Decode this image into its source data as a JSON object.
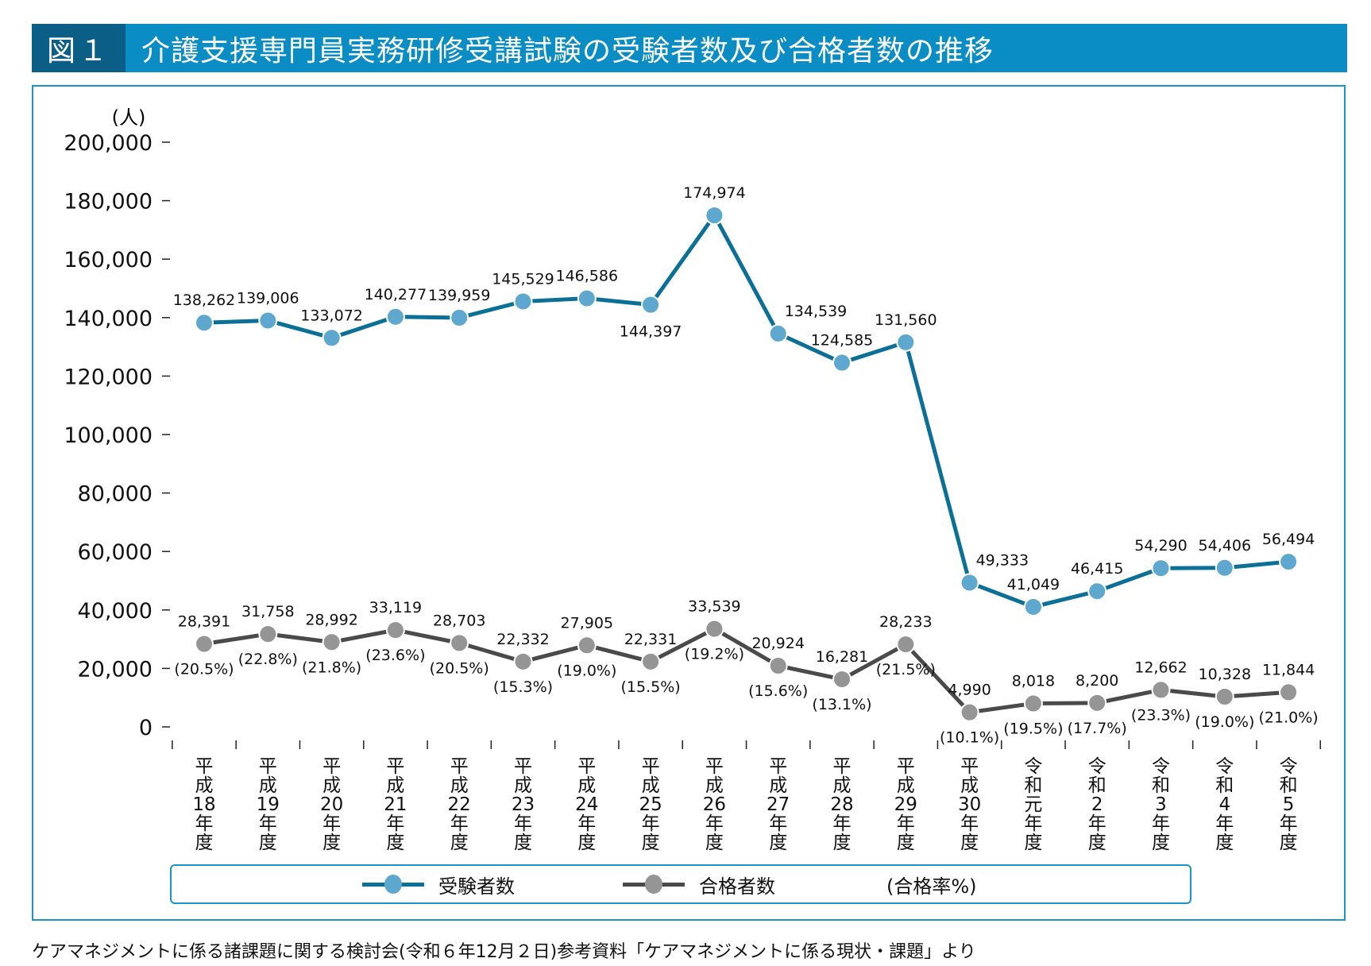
{
  "header": {
    "figure_label": "図１",
    "title": "介護支援専門員実務研修受講試験の受験者数及び合格者数の推移"
  },
  "colors": {
    "title_bar": "#0a8cc4",
    "title_label_bg": "#0b5f86",
    "frame_border": "#1a94cc",
    "examinees_line": "#0b6f98",
    "examinees_marker": "#5ea8d0",
    "passers_line": "#4a4a4a",
    "passers_marker": "#959595"
  },
  "legend": {
    "examinees": "受験者数",
    "passers": "合格者数",
    "rate_note": "(合格率%)"
  },
  "source_note": "ケアマネジメントに係る諸課題に関する検討会(令和６年12月２日)参考資料「ケアマネジメントに係る現状・課題」より",
  "chart_data": {
    "type": "line",
    "title": "介護支援専門員実務研修受講試験の受験者数及び合格者数の推移",
    "xlabel": "",
    "ylabel": "(人)",
    "ylim": [
      0,
      200000
    ],
    "yticks": [
      0,
      20000,
      40000,
      60000,
      80000,
      100000,
      120000,
      140000,
      160000,
      180000,
      200000
    ],
    "ytick_labels": [
      "0",
      "20,000",
      "40,000",
      "60,000",
      "80,000",
      "100,000",
      "120,000",
      "140,000",
      "160,000",
      "180,000",
      "200,000"
    ],
    "grid": false,
    "legend_position": "bottom",
    "categories": [
      [
        "平",
        "成",
        "18",
        "年",
        "度"
      ],
      [
        "平",
        "成",
        "19",
        "年",
        "度"
      ],
      [
        "平",
        "成",
        "20",
        "年",
        "度"
      ],
      [
        "平",
        "成",
        "21",
        "年",
        "度"
      ],
      [
        "平",
        "成",
        "22",
        "年",
        "度"
      ],
      [
        "平",
        "成",
        "23",
        "年",
        "度"
      ],
      [
        "平",
        "成",
        "24",
        "年",
        "度"
      ],
      [
        "平",
        "成",
        "25",
        "年",
        "度"
      ],
      [
        "平",
        "成",
        "26",
        "年",
        "度"
      ],
      [
        "平",
        "成",
        "27",
        "年",
        "度"
      ],
      [
        "平",
        "成",
        "28",
        "年",
        "度"
      ],
      [
        "平",
        "成",
        "29",
        "年",
        "度"
      ],
      [
        "平",
        "成",
        "30",
        "年",
        "度"
      ],
      [
        "令",
        "和",
        "元",
        "年",
        "度"
      ],
      [
        "令",
        "和",
        "2",
        "年",
        "度"
      ],
      [
        "令",
        "和",
        "3",
        "年",
        "度"
      ],
      [
        "令",
        "和",
        "4",
        "年",
        "度"
      ],
      [
        "令",
        "和",
        "5",
        "年",
        "度"
      ]
    ],
    "series": [
      {
        "name": "受験者数",
        "values": [
          138262,
          139006,
          133072,
          140277,
          139959,
          145529,
          146586,
          144397,
          174974,
          134539,
          124585,
          131560,
          49333,
          41049,
          46415,
          54290,
          54406,
          56494
        ],
        "labels": [
          "138,262",
          "139,006",
          "133,072",
          "140,277",
          "139,959",
          "145,529",
          "146,586",
          "144,397",
          "174,974",
          "134,539",
          "124,585",
          "131,560",
          "49,333",
          "41,049",
          "46,415",
          "54,290",
          "54,406",
          "56,494"
        ],
        "label_pos": [
          "above",
          "above",
          "above",
          "above",
          "above",
          "above",
          "above",
          "below",
          "above",
          "above-right",
          "above",
          "above",
          "above-right",
          "above",
          "above",
          "above",
          "above",
          "above"
        ]
      },
      {
        "name": "合格者数",
        "values": [
          28391,
          31758,
          28992,
          33119,
          28703,
          22332,
          27905,
          22331,
          33539,
          20924,
          16281,
          28233,
          4990,
          8018,
          8200,
          12662,
          10328,
          11844
        ],
        "labels": [
          "28,391",
          "31,758",
          "28,992",
          "33,119",
          "28,703",
          "22,332",
          "27,905",
          "22,331",
          "33,539",
          "20,924",
          "16,281",
          "28,233",
          "4,990",
          "8,018",
          "8,200",
          "12,662",
          "10,328",
          "11,844"
        ],
        "pass_rate_labels": [
          "(20.5%)",
          "(22.8%)",
          "(21.8%)",
          "(23.6%)",
          "(20.5%)",
          "(15.3%)",
          "(19.0%)",
          "(15.5%)",
          "(19.2%)",
          "(15.6%)",
          "(13.1%)",
          "(21.5%)",
          "(10.1%)",
          "(19.5%)",
          "(17.7%)",
          "(23.3%)",
          "(19.0%)",
          "(21.0%)"
        ],
        "pass_rate": [
          20.5,
          22.8,
          21.8,
          23.6,
          20.5,
          15.3,
          19.0,
          15.5,
          19.2,
          15.6,
          13.1,
          21.5,
          10.1,
          19.5,
          17.7,
          23.3,
          19.0,
          21.0
        ]
      }
    ]
  }
}
